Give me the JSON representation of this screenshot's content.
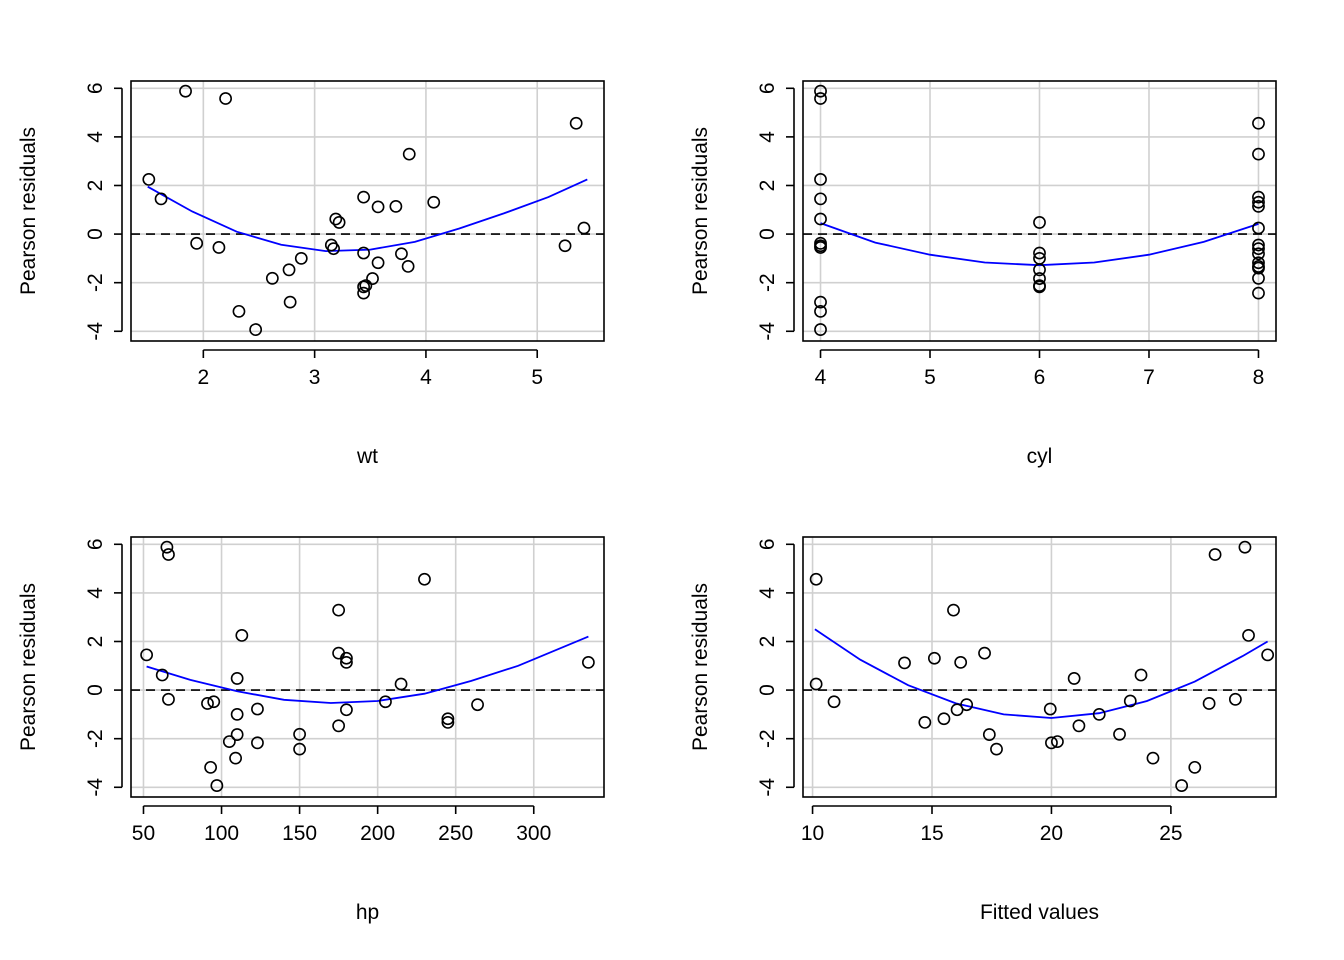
{
  "colors": {
    "points": "#000000",
    "curve": "#0000ff",
    "grid": "#d0d0d0",
    "reference_line": "#000000"
  },
  "chart_data": [
    {
      "type": "scatter",
      "xlabel": "wt",
      "ylabel": "Pearson residuals",
      "xlim": [
        1.35,
        5.6
      ],
      "ylim": [
        -4.4,
        6.3
      ],
      "xticks": [
        2,
        3,
        4,
        5
      ],
      "yticks": [
        -4,
        -2,
        0,
        2,
        4,
        6
      ],
      "grid": true,
      "reference_line": {
        "y": 0,
        "style": "dashed"
      },
      "points": [
        {
          "x": 1.51,
          "y": 2.25
        },
        {
          "x": 1.62,
          "y": 1.45
        },
        {
          "x": 1.84,
          "y": 5.88
        },
        {
          "x": 1.94,
          "y": -0.38
        },
        {
          "x": 2.14,
          "y": -0.55
        },
        {
          "x": 2.2,
          "y": 5.58
        },
        {
          "x": 2.32,
          "y": -3.18
        },
        {
          "x": 2.47,
          "y": -3.93
        },
        {
          "x": 2.62,
          "y": -1.82
        },
        {
          "x": 2.77,
          "y": -1.47
        },
        {
          "x": 2.78,
          "y": -2.8
        },
        {
          "x": 2.88,
          "y": -1.0
        },
        {
          "x": 3.15,
          "y": -0.45
        },
        {
          "x": 3.17,
          "y": -0.6
        },
        {
          "x": 3.19,
          "y": 0.62
        },
        {
          "x": 3.22,
          "y": 0.48
        },
        {
          "x": 3.44,
          "y": 1.52
        },
        {
          "x": 3.44,
          "y": -0.78
        },
        {
          "x": 3.44,
          "y": -2.43
        },
        {
          "x": 3.44,
          "y": -2.17
        },
        {
          "x": 3.46,
          "y": -2.12
        },
        {
          "x": 3.52,
          "y": -1.83
        },
        {
          "x": 3.57,
          "y": 1.12
        },
        {
          "x": 3.57,
          "y": -1.18
        },
        {
          "x": 3.73,
          "y": 1.14
        },
        {
          "x": 3.78,
          "y": -0.81
        },
        {
          "x": 3.84,
          "y": -1.33
        },
        {
          "x": 3.85,
          "y": 3.29
        },
        {
          "x": 4.07,
          "y": 1.31
        },
        {
          "x": 5.25,
          "y": -0.48
        },
        {
          "x": 5.35,
          "y": 4.56
        },
        {
          "x": 5.42,
          "y": 0.25
        }
      ],
      "smooth": {
        "x": [
          1.5,
          1.9,
          2.3,
          2.7,
          3.1,
          3.5,
          3.9,
          4.3,
          4.7,
          5.1,
          5.45
        ],
        "y": [
          1.95,
          0.93,
          0.1,
          -0.44,
          -0.7,
          -0.64,
          -0.32,
          0.23,
          0.85,
          1.52,
          2.25
        ]
      }
    },
    {
      "type": "scatter",
      "xlabel": "cyl",
      "ylabel": "Pearson residuals",
      "xlim": [
        3.84,
        8.16
      ],
      "ylim": [
        -4.4,
        6.3
      ],
      "xticks": [
        4,
        5,
        6,
        7,
        8
      ],
      "yticks": [
        -4,
        -2,
        0,
        2,
        4,
        6
      ],
      "grid": true,
      "reference_line": {
        "y": 0,
        "style": "dashed"
      },
      "points": [
        {
          "x": 4,
          "y": 5.88
        },
        {
          "x": 4,
          "y": 5.58
        },
        {
          "x": 4,
          "y": 2.25
        },
        {
          "x": 4,
          "y": 1.45
        },
        {
          "x": 4,
          "y": 0.62
        },
        {
          "x": 4,
          "y": -0.38
        },
        {
          "x": 4,
          "y": -0.48
        },
        {
          "x": 4,
          "y": -0.55
        },
        {
          "x": 4,
          "y": -2.8
        },
        {
          "x": 4,
          "y": -3.18
        },
        {
          "x": 4,
          "y": -3.93
        },
        {
          "x": 6,
          "y": 0.48
        },
        {
          "x": 6,
          "y": -0.78
        },
        {
          "x": 6,
          "y": -1.0
        },
        {
          "x": 6,
          "y": -1.47
        },
        {
          "x": 6,
          "y": -1.83
        },
        {
          "x": 6,
          "y": -2.12
        },
        {
          "x": 6,
          "y": -2.17
        },
        {
          "x": 8,
          "y": 4.56
        },
        {
          "x": 8,
          "y": 3.29
        },
        {
          "x": 8,
          "y": 1.52
        },
        {
          "x": 8,
          "y": 1.31
        },
        {
          "x": 8,
          "y": 1.14
        },
        {
          "x": 8,
          "y": 0.25
        },
        {
          "x": 8,
          "y": -0.45
        },
        {
          "x": 8,
          "y": -0.6
        },
        {
          "x": 8,
          "y": -0.81
        },
        {
          "x": 8,
          "y": -1.18
        },
        {
          "x": 8,
          "y": -1.33
        },
        {
          "x": 8,
          "y": -1.82
        },
        {
          "x": 8,
          "y": -2.43
        },
        {
          "x": 8,
          "y": -1.4
        }
      ],
      "smooth": {
        "x": [
          4,
          4.5,
          5,
          5.5,
          6,
          6.5,
          7,
          7.5,
          8
        ],
        "y": [
          0.45,
          -0.35,
          -0.85,
          -1.17,
          -1.28,
          -1.17,
          -0.85,
          -0.32,
          0.42
        ]
      }
    },
    {
      "type": "scatter",
      "xlabel": "hp",
      "ylabel": "Pearson residuals",
      "xlim": [
        42,
        345
      ],
      "ylim": [
        -4.4,
        6.3
      ],
      "xticks": [
        50,
        100,
        150,
        200,
        250,
        300
      ],
      "yticks": [
        -4,
        -2,
        0,
        2,
        4,
        6
      ],
      "grid": true,
      "reference_line": {
        "y": 0,
        "style": "dashed"
      },
      "points": [
        {
          "x": 52,
          "y": 1.45
        },
        {
          "x": 62,
          "y": 0.62
        },
        {
          "x": 65,
          "y": 5.88
        },
        {
          "x": 66,
          "y": 5.58
        },
        {
          "x": 66,
          "y": -0.38
        },
        {
          "x": 91,
          "y": -0.55
        },
        {
          "x": 93,
          "y": -3.18
        },
        {
          "x": 95,
          "y": -0.48
        },
        {
          "x": 97,
          "y": -3.93
        },
        {
          "x": 105,
          "y": -2.12
        },
        {
          "x": 109,
          "y": -2.8
        },
        {
          "x": 110,
          "y": 0.48
        },
        {
          "x": 110,
          "y": -1.0
        },
        {
          "x": 110,
          "y": -1.83
        },
        {
          "x": 113,
          "y": 2.25
        },
        {
          "x": 123,
          "y": -0.78
        },
        {
          "x": 123,
          "y": -2.17
        },
        {
          "x": 150,
          "y": -1.82
        },
        {
          "x": 150,
          "y": -2.43
        },
        {
          "x": 175,
          "y": 3.29
        },
        {
          "x": 175,
          "y": 1.52
        },
        {
          "x": 175,
          "y": -1.47
        },
        {
          "x": 180,
          "y": 1.31
        },
        {
          "x": 180,
          "y": 1.14
        },
        {
          "x": 180,
          "y": -0.81
        },
        {
          "x": 205,
          "y": -0.48
        },
        {
          "x": 215,
          "y": 0.25
        },
        {
          "x": 230,
          "y": 4.56
        },
        {
          "x": 245,
          "y": -1.18
        },
        {
          "x": 245,
          "y": -1.33
        },
        {
          "x": 264,
          "y": -0.6
        },
        {
          "x": 335,
          "y": 1.14
        }
      ],
      "smooth": {
        "x": [
          52,
          80,
          110,
          140,
          170,
          200,
          230,
          260,
          290,
          335
        ],
        "y": [
          0.97,
          0.42,
          -0.05,
          -0.4,
          -0.53,
          -0.45,
          -0.15,
          0.38,
          1.0,
          2.2
        ]
      }
    },
    {
      "type": "scatter",
      "xlabel": "Fitted values",
      "ylabel": "Pearson residuals",
      "xlim": [
        9.6,
        29.4
      ],
      "ylim": [
        -4.4,
        6.3
      ],
      "xticks": [
        10,
        15,
        20,
        25
      ],
      "yticks": [
        -4,
        -2,
        0,
        2,
        4,
        6
      ],
      "grid": true,
      "reference_line": {
        "y": 0,
        "style": "dashed"
      },
      "points": [
        {
          "x": 10.15,
          "y": 4.56
        },
        {
          "x": 10.15,
          "y": 0.25
        },
        {
          "x": 10.9,
          "y": -0.48
        },
        {
          "x": 13.85,
          "y": 1.12
        },
        {
          "x": 14.7,
          "y": -1.33
        },
        {
          "x": 15.1,
          "y": 1.31
        },
        {
          "x": 15.5,
          "y": -1.18
        },
        {
          "x": 15.9,
          "y": 3.29
        },
        {
          "x": 16.05,
          "y": -0.81
        },
        {
          "x": 16.2,
          "y": 1.14
        },
        {
          "x": 16.45,
          "y": -0.6
        },
        {
          "x": 17.2,
          "y": 1.52
        },
        {
          "x": 17.4,
          "y": -1.83
        },
        {
          "x": 17.7,
          "y": -2.43
        },
        {
          "x": 19.95,
          "y": -0.78
        },
        {
          "x": 20.0,
          "y": -2.17
        },
        {
          "x": 20.25,
          "y": -2.12
        },
        {
          "x": 20.95,
          "y": 0.48
        },
        {
          "x": 21.15,
          "y": -1.47
        },
        {
          "x": 22.0,
          "y": -1.0
        },
        {
          "x": 22.85,
          "y": -1.82
        },
        {
          "x": 23.3,
          "y": -0.45
        },
        {
          "x": 23.75,
          "y": 0.62
        },
        {
          "x": 24.25,
          "y": -2.8
        },
        {
          "x": 25.45,
          "y": -3.93
        },
        {
          "x": 26.0,
          "y": -3.18
        },
        {
          "x": 26.6,
          "y": -0.55
        },
        {
          "x": 26.85,
          "y": 5.58
        },
        {
          "x": 27.7,
          "y": -0.38
        },
        {
          "x": 28.1,
          "y": 5.88
        },
        {
          "x": 28.25,
          "y": 2.25
        },
        {
          "x": 29.05,
          "y": 1.45
        }
      ],
      "smooth": {
        "x": [
          10.1,
          12,
          14,
          16,
          18,
          20,
          22,
          24,
          26,
          28,
          29.05
        ],
        "y": [
          2.5,
          1.25,
          0.2,
          -0.55,
          -1.0,
          -1.15,
          -0.95,
          -0.45,
          0.35,
          1.4,
          2.0
        ]
      }
    }
  ]
}
